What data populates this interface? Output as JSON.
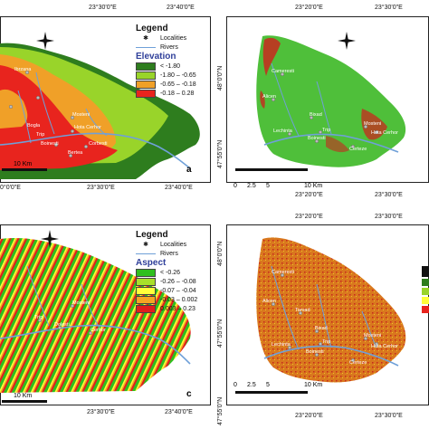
{
  "coords": {
    "top_left_bottom": [
      "23°30'0\"E",
      "23°40'0\"E"
    ],
    "top_right_top": [
      "23°20'0\"E",
      "23°30'0\"E"
    ],
    "top_right_left": [
      "48°0'0\"N",
      "47°55'0\"N"
    ],
    "mid_left_top": [
      "0°0'0\"E",
      "23°30'0\"E",
      "23°40'0\"E"
    ],
    "mid_right_bottom": [
      "23°20'0\"E",
      "23°30'0\"E"
    ],
    "mid_right_left": [
      "47°55'0\"N"
    ],
    "bottom_left": [
      "23°30'0\"E",
      "23°40'0\"E"
    ],
    "bottom_right_top": [
      "23°20'0\"E",
      "23°30'0\"E"
    ],
    "bottom_right_left": [
      "48°0'0\"N",
      "47°55'0\"N"
    ],
    "bottom_row": [
      "23°20'0\"E",
      "23°30'0\"E"
    ]
  },
  "panel_a": {
    "legend_title": "Legend",
    "localities": "Localities",
    "rivers": "Rivers",
    "variable": "Elevation",
    "classes": [
      {
        "label": "< -1.80",
        "color": "#2e7d1e"
      },
      {
        "label": "-1.80 – -0.65",
        "color": "#99d42a"
      },
      {
        "label": "-0.65 – -0.18",
        "color": "#f0a028"
      },
      {
        "label": "-0.18 – 0.28",
        "color": "#e8241e"
      }
    ],
    "scale": "10 Km",
    "letter": "a",
    "places": [
      "Mosteni",
      "Hota Cerhor",
      "Bogla",
      "Trip",
      "Boinesti",
      "Bertea",
      "Corbesti",
      "Ibrzana"
    ]
  },
  "panel_b": {
    "scale_ticks": [
      "0",
      "2.5",
      "5",
      "10 Km"
    ],
    "places": [
      "Cameresti",
      "Alicen",
      "Bixad",
      "Lechinta",
      "Trip",
      "Boinesti",
      "Mosteni",
      "Hota Cerhor",
      "Certeze"
    ]
  },
  "panel_c": {
    "legend_title": "Legend",
    "localities": "Localities",
    "rivers": "Rivers",
    "variable": "Aspect",
    "classes": [
      {
        "label": "< -0.26",
        "color": "#2fbf1e"
      },
      {
        "label": "-0.26 – -0.08",
        "color": "#a8e02a"
      },
      {
        "label": "-0.07 – -0.04",
        "color": "#ffff3a"
      },
      {
        "label": "-0.03 – 0.002",
        "color": "#f5a523"
      },
      {
        "label": "0.003 – 0.23",
        "color": "#e01e1e"
      }
    ],
    "scale": "10 Km",
    "letter": "c",
    "places": [
      "Mosteni",
      "Trip",
      "Dolesti",
      "Cerhor"
    ]
  },
  "panel_d": {
    "scale_ticks": [
      "0",
      "2.5",
      "5",
      "10 Km"
    ],
    "places": [
      "Cameresti",
      "Alicen",
      "Tarvad",
      "Bixad",
      "Lechinta",
      "Trip",
      "Boinesti",
      "Mosteni",
      "Hota Cerhor",
      "Certeze"
    ]
  },
  "colors": {
    "river": "#6fa0d8",
    "elev_green_dark": "#2e7d1e",
    "elev_lime": "#99d42a",
    "elev_orange": "#f0a028",
    "elev_red": "#e8241e",
    "land_green": "#4fbf3a",
    "land_red": "#c8281e",
    "orange_base": "#d9781e"
  }
}
